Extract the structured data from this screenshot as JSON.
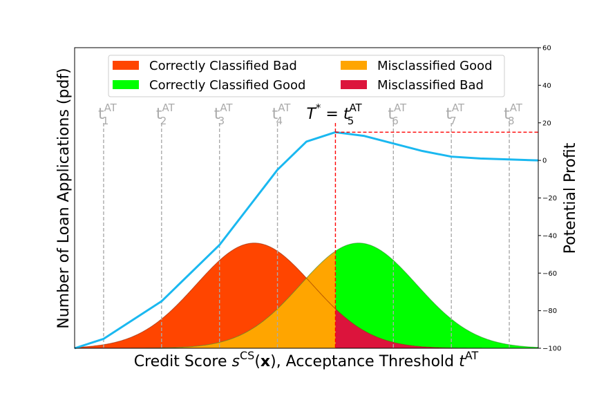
{
  "chart_data": {
    "type": "area",
    "xlabel": {
      "main": "Credit Score ",
      "s": "s",
      "sup": "CS",
      "paren_open": "(",
      "x": "x",
      "paren_close": "), Acceptance Threshold ",
      "t": "t",
      "t_sup": "AT"
    },
    "ylabel_left": "Number of Loan Applications (pdf)",
    "ylabel_right": "Potential Profit",
    "right_axis": {
      "ylim": [
        -100,
        60
      ],
      "ticks": [
        "60",
        "40",
        "20",
        "0",
        "−20",
        "−40",
        "−60",
        "−80",
        "−100"
      ],
      "tick_values": [
        60,
        40,
        20,
        0,
        -20,
        -40,
        -60,
        -80,
        -100
      ]
    },
    "xlim": [
      0,
      8
    ],
    "legend": {
      "placement": "top-center",
      "entries": [
        {
          "label": "Correctly Classified Bad",
          "color": "#ff4500"
        },
        {
          "label": "Misclassified Good",
          "color": "#ffa500"
        },
        {
          "label": "Correctly Classified Good",
          "color": "#00ff00"
        },
        {
          "label": "Misclassified Bad",
          "color": "#dc143c"
        }
      ]
    },
    "distributions": {
      "bad": {
        "mean": 3.1,
        "sd": 1.0,
        "peak_fraction": 0.35
      },
      "good": {
        "mean": 4.9,
        "sd": 1.0,
        "peak_fraction": 0.35
      }
    },
    "optimal_threshold_index": 5,
    "thresholds": [
      {
        "x": 0.5,
        "label": "t",
        "sub": "1",
        "sup": "AT"
      },
      {
        "x": 1.5,
        "label": "t",
        "sub": "2",
        "sup": "AT"
      },
      {
        "x": 2.5,
        "label": "t",
        "sub": "3",
        "sup": "AT"
      },
      {
        "x": 3.5,
        "label": "t",
        "sub": "4",
        "sup": "AT"
      },
      {
        "x": 4.5,
        "label": "t",
        "sub": "5",
        "sup": "AT",
        "prefix": "T",
        "prefix_sup": "*",
        "equals": " = "
      },
      {
        "x": 5.5,
        "label": "t",
        "sub": "6",
        "sup": "AT"
      },
      {
        "x": 6.5,
        "label": "t",
        "sub": "7",
        "sup": "AT"
      },
      {
        "x": 7.5,
        "label": "t",
        "sub": "8",
        "sup": "AT"
      }
    ],
    "profit_series": {
      "name": "",
      "color": "#1ab8f0",
      "x": [
        0,
        0.5,
        1.5,
        2.5,
        3.5,
        4.0,
        4.5,
        5.0,
        5.5,
        6.0,
        6.5,
        7.0,
        7.5,
        8.0
      ],
      "y": [
        -100,
        -95,
        -75,
        -45,
        -5,
        10,
        15,
        13,
        9,
        5,
        2,
        1,
        0.5,
        0
      ]
    },
    "optimal_profit": 15,
    "colors": {
      "threshold_line": "#aaaaaa",
      "optimal_line": "#ff0000"
    }
  }
}
